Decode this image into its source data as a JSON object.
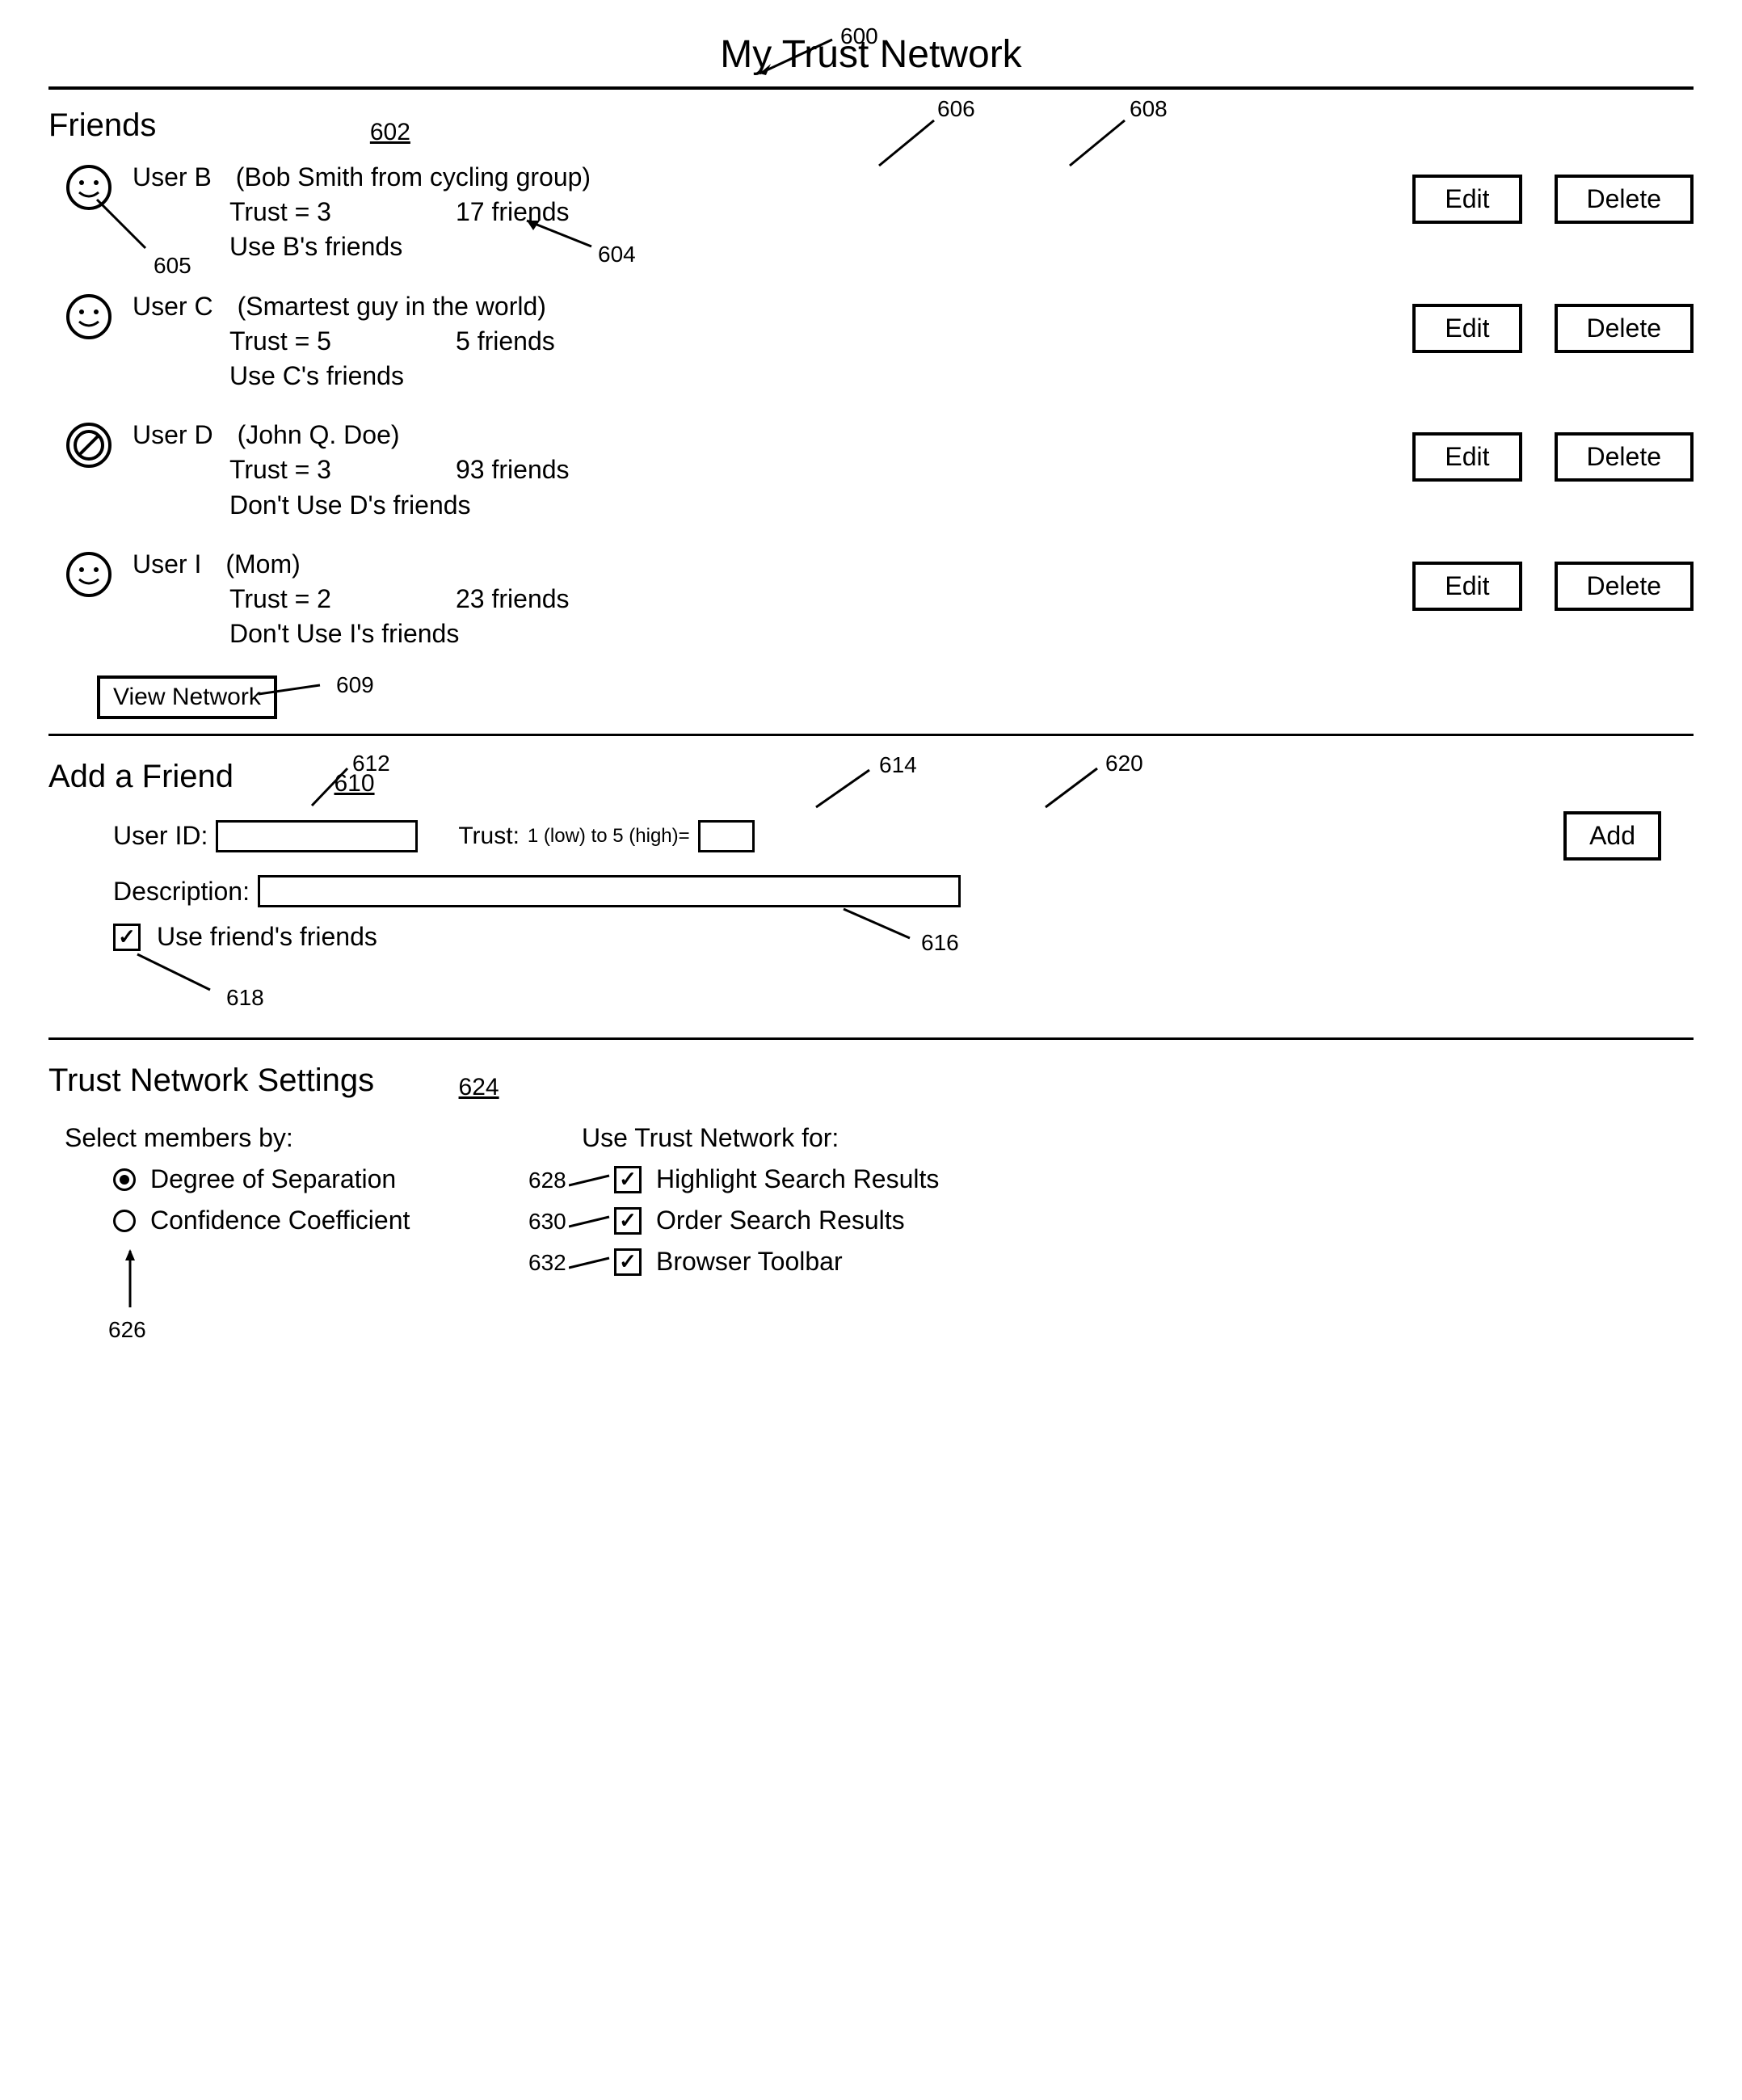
{
  "page": {
    "title": "My Trust Network"
  },
  "refs": {
    "page": "600",
    "friends_section": "602",
    "friend_count": "604",
    "friend_icon": "605",
    "edit_btn": "606",
    "delete_btn": "608",
    "view_network": "609",
    "add_section": "610",
    "userid_input": "612",
    "trust_input": "614",
    "desc_input": "616",
    "use_friends_chk": "618",
    "add_btn": "620",
    "settings_section": "624",
    "radio_group": "626",
    "highlight_chk": "628",
    "order_chk": "630",
    "toolbar_chk": "632"
  },
  "friends": {
    "title": "Friends",
    "items": [
      {
        "icon": "smile",
        "name": "User B",
        "desc": "(Bob Smith from cycling group)",
        "trust": "Trust = 3",
        "count": "17 friends",
        "use": "Use B's friends"
      },
      {
        "icon": "smile",
        "name": "User C",
        "desc": "(Smartest guy in the world)",
        "trust": "Trust = 5",
        "count": "5 friends",
        "use": "Use C's friends"
      },
      {
        "icon": "block",
        "name": "User D",
        "desc": "(John Q. Doe)",
        "trust": "Trust = 3",
        "count": "93 friends",
        "use": "Don't Use D's friends"
      },
      {
        "icon": "smile",
        "name": "User I",
        "desc": "(Mom)",
        "trust": "Trust = 2",
        "count": "23 friends",
        "use": "Don't Use I's friends"
      }
    ],
    "edit_label": "Edit",
    "delete_label": "Delete",
    "view_network_label": "View Network"
  },
  "add": {
    "title": "Add a Friend",
    "userid_label": "User ID:",
    "trust_label": "Trust:",
    "trust_hint": "1 (low) to 5 (high)=",
    "desc_label": "Description:",
    "use_friends_label": "Use friend's friends",
    "use_friends_checked": true,
    "add_label": "Add"
  },
  "settings": {
    "title": "Trust Network Settings",
    "select_by_label": "Select members by:",
    "radios": [
      {
        "label": "Degree of Separation",
        "checked": true
      },
      {
        "label": "Confidence Coefficient",
        "checked": false
      }
    ],
    "use_for_label": "Use Trust Network for:",
    "checks": [
      {
        "label": "Highlight Search Results",
        "checked": true
      },
      {
        "label": "Order Search Results",
        "checked": true
      },
      {
        "label": "Browser Toolbar",
        "checked": true
      }
    ]
  },
  "style": {
    "border_color": "#000000",
    "background": "#ffffff",
    "title_fontsize": 48,
    "section_fontsize": 40,
    "body_fontsize": 32,
    "button_border_width": 4
  }
}
